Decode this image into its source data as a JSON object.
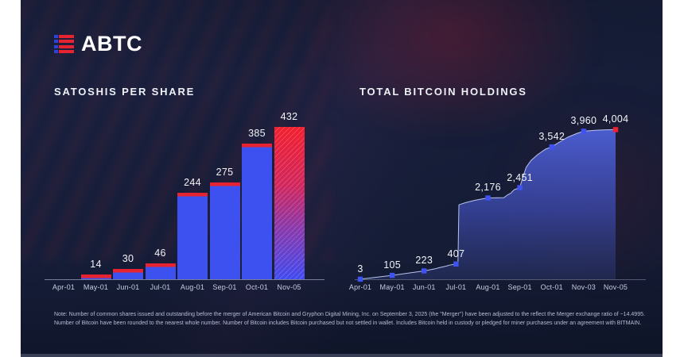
{
  "header": {
    "logo_text": "ABTC"
  },
  "colors": {
    "background": "#161e39",
    "bar_blue": "#3d50f0",
    "bar_cap_red": "#e62431",
    "highlight_red": "#f2202e",
    "area_line": "#b9c4ee",
    "marker_blue": "#4053f2",
    "marker_red": "#ee2130",
    "axis_line": "#c8d0e6",
    "value_text": "#f2f4f9",
    "tick_text": "#c6cde0"
  },
  "chart_data": [
    {
      "type": "bar",
      "title": "SATOSHIS PER SHARE",
      "categories": [
        "Apr-01",
        "May-01",
        "Jun-01",
        "Jul-01",
        "Aug-01",
        "Sep-01",
        "Oct-01",
        "Nov-05"
      ],
      "values": [
        null,
        14,
        30,
        46,
        244,
        275,
        385,
        432
      ],
      "labels": [
        null,
        "14",
        "30",
        "46",
        "244",
        "275",
        "385",
        "432"
      ],
      "ylim": [
        0,
        465
      ],
      "xlabel": "",
      "ylabel": "",
      "grid": false,
      "legend": false,
      "highlight_last": true
    },
    {
      "type": "area",
      "title": "TOTAL BITCOIN HOLDINGS",
      "categories": [
        "Apr-01",
        "May-01",
        "Jun-01",
        "Jul-01",
        "Aug-01",
        "Sep-01",
        "Oct-01",
        "Nov-03",
        "Nov-05"
      ],
      "values": [
        3,
        105,
        223,
        407,
        2176,
        2451,
        3542,
        3960,
        4004
      ],
      "labels": [
        "3",
        "105",
        "223",
        "407",
        "2,176",
        "2,451",
        "3,542",
        "3,960",
        "4,004"
      ],
      "ylim": [
        0,
        4500
      ],
      "xlabel": "",
      "ylabel": "",
      "grid": false,
      "legend": false,
      "profile": [
        [
          0,
          3
        ],
        [
          1,
          105
        ],
        [
          2,
          223
        ],
        [
          2.35,
          280
        ],
        [
          2.45,
          305
        ],
        [
          2.7,
          352
        ],
        [
          2.78,
          375
        ],
        [
          3,
          407
        ],
        [
          3.06,
          407
        ],
        [
          3.09,
          1990
        ],
        [
          3.3,
          2050
        ],
        [
          3.6,
          2115
        ],
        [
          3.85,
          2155
        ],
        [
          4,
          2176
        ],
        [
          4.5,
          2185
        ],
        [
          4.62,
          2260
        ],
        [
          4.72,
          2305
        ],
        [
          4.82,
          2395
        ],
        [
          5,
          2451
        ],
        [
          5.08,
          2700
        ],
        [
          5.2,
          3000
        ],
        [
          5.35,
          3180
        ],
        [
          5.55,
          3330
        ],
        [
          5.8,
          3480
        ],
        [
          6,
          3542
        ],
        [
          6.2,
          3650
        ],
        [
          6.5,
          3800
        ],
        [
          6.8,
          3905
        ],
        [
          7,
          3960
        ],
        [
          7.4,
          3988
        ],
        [
          7.7,
          3998
        ],
        [
          8,
          4004
        ]
      ]
    }
  ],
  "note": "Note: Number of common shares issued and outstanding before the merger of American Bitcoin and Gryphon Digital Mining, Inc. on September 3, 2025 (the \"Merger\") have been adjusted to the reflect the Merger exchange ratio of ~14.4995. Number of Bitcoin have been rounded to the nearest whole number. Number of Bitcoin includes Bitcoin purchased but not settled in wallet. Includes Bitcoin held in custody or pledged for miner purchases under an agreement with BITMAIN."
}
